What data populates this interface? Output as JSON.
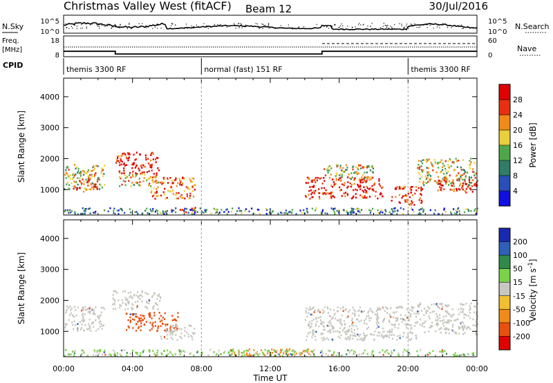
{
  "header": {
    "station": "Christmas Valley West (fitACF)",
    "beam": "Beam 12",
    "date": "30/Jul/2016"
  },
  "strips": {
    "nsky_label": "N.Sky",
    "nsearch_label": "N.Search",
    "nsky_ticks": [
      "10^5",
      "10^0"
    ],
    "nsearch_ticks": [
      "10^5",
      "10^0"
    ],
    "freq_label": "Freq.",
    "freq_unit": "[MHz]",
    "freq_ticks": [
      "18",
      "8"
    ],
    "nave_label": "Nave",
    "nave_ticks": [
      "60",
      "0"
    ],
    "cpid_label": "CPID",
    "cpid_segments": [
      {
        "start_h": 0,
        "end_h": 8,
        "label": "themis 3300 RF"
      },
      {
        "start_h": 8,
        "end_h": 20,
        "label": "normal (fast) 151 RF"
      },
      {
        "start_h": 20,
        "end_h": 24,
        "label": "themis 3300 RF"
      }
    ],
    "freq_steps": [
      {
        "t0": 0,
        "t1": 3,
        "v": 10.6
      },
      {
        "t0": 3,
        "t1": 15,
        "v": 9.3
      },
      {
        "t0": 15,
        "t1": 24,
        "v": 10.6
      }
    ]
  },
  "chart_data": [
    {
      "type": "heatmap",
      "name": "power",
      "ylabel": "Slant Range [km]",
      "xlim": [
        0,
        24
      ],
      "ylim": [
        180,
        4600
      ],
      "yticks": [
        1000,
        2000,
        3000,
        4000
      ],
      "colorbar": {
        "label": "Power [dB]",
        "ticks": [
          "4",
          "8",
          "12",
          "16",
          "20",
          "24",
          "28"
        ],
        "range": [
          0,
          30
        ],
        "colors": [
          "#1010e0",
          "#2a4fb8",
          "#2f7d68",
          "#4ea84a",
          "#e8d03a",
          "#f08a18",
          "#e83010",
          "#e00000"
        ]
      },
      "regions": [
        {
          "t0": 0.0,
          "t1": 2.4,
          "r0": 1000,
          "r1": 1800,
          "level": 0.55
        },
        {
          "t0": 0.6,
          "t1": 2.0,
          "r0": 900,
          "r1": 1300,
          "level": 0.85
        },
        {
          "t0": 3.0,
          "t1": 5.5,
          "r0": 1500,
          "r1": 2200,
          "level": 0.95
        },
        {
          "t0": 3.2,
          "t1": 5.8,
          "r0": 1100,
          "r1": 1500,
          "level": 0.6
        },
        {
          "t0": 5.0,
          "t1": 7.6,
          "r0": 700,
          "r1": 1400,
          "level": 0.75
        },
        {
          "t0": 6.2,
          "t1": 7.8,
          "r0": 260,
          "r1": 420,
          "level": 0.85
        },
        {
          "t0": 14.0,
          "t1": 18.5,
          "r0": 700,
          "r1": 1400,
          "level": 0.9
        },
        {
          "t0": 15.0,
          "t1": 18.0,
          "r0": 1300,
          "r1": 1800,
          "level": 0.55
        },
        {
          "t0": 19.0,
          "t1": 20.8,
          "r0": 500,
          "r1": 1100,
          "level": 0.9
        },
        {
          "t0": 20.5,
          "t1": 24.0,
          "r0": 1100,
          "r1": 2000,
          "level": 0.55
        },
        {
          "t0": 21.5,
          "t1": 24.0,
          "r0": 900,
          "r1": 1300,
          "level": 0.9
        },
        {
          "t0": 0.0,
          "t1": 24.0,
          "r0": 200,
          "r1": 400,
          "level": 0.3
        }
      ]
    },
    {
      "type": "heatmap",
      "name": "velocity",
      "ylabel": "Slant Range [km]",
      "xlabel": "Time UT",
      "xlim": [
        0,
        24
      ],
      "ylim": [
        180,
        4600
      ],
      "xticks": [
        "00:00",
        "04:00",
        "08:00",
        "12:00",
        "16:00",
        "20:00",
        "00:00"
      ],
      "yticks": [
        1000,
        2000,
        3000,
        4000
      ],
      "colorbar": {
        "label": "Velocity [m s^-1]",
        "ticks": [
          "200",
          "100",
          "50",
          "15",
          "-15",
          "-50",
          "-100",
          "-200"
        ],
        "colors": [
          "#1a2ab0",
          "#2f5fb8",
          "#2f8a4a",
          "#7ad24a",
          "#c8c8c0",
          "#f0c030",
          "#f08a18",
          "#e85010",
          "#e00000"
        ]
      },
      "regions": [
        {
          "t0": 0.0,
          "t1": 2.4,
          "r0": 1000,
          "r1": 1800,
          "v": 0
        },
        {
          "t0": 2.8,
          "t1": 5.6,
          "r0": 1700,
          "r1": 2300,
          "v": 0
        },
        {
          "t0": 3.6,
          "t1": 6.6,
          "r0": 1000,
          "r1": 1600,
          "v": -90
        },
        {
          "t0": 5.6,
          "t1": 7.6,
          "r0": 700,
          "r1": 1200,
          "v": 0
        },
        {
          "t0": 14.0,
          "t1": 20.5,
          "r0": 700,
          "r1": 1800,
          "v": 0
        },
        {
          "t0": 20.5,
          "t1": 24.0,
          "r0": 900,
          "r1": 1900,
          "v": 0
        },
        {
          "t0": 9.5,
          "t1": 14.5,
          "r0": 200,
          "r1": 420,
          "v": -40
        },
        {
          "t0": 0.0,
          "t1": 24.0,
          "r0": 200,
          "r1": 400,
          "v": 20
        }
      ]
    }
  ]
}
